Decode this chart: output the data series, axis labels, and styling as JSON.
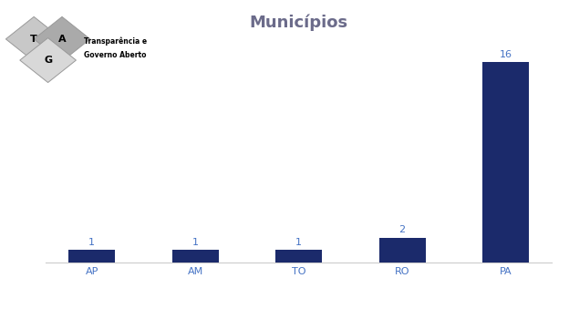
{
  "categories": [
    "AP",
    "AM",
    "TO",
    "RO",
    "PA"
  ],
  "values": [
    1,
    1,
    1,
    2,
    16
  ],
  "bar_color": "#1B2A6B",
  "title": "Municípios",
  "title_color": "#6B6B8A",
  "title_fontsize": 13,
  "label_color": "#4472C4",
  "label_fontsize": 8,
  "tick_color": "#4472C4",
  "tick_fontsize": 8,
  "background_color": "#FFFFFF",
  "ylim": [
    0,
    18
  ],
  "bar_width": 0.45,
  "logo": {
    "diamond_T_color": "#C8C8C8",
    "diamond_A_color": "#AAAAAA",
    "diamond_G_color": "#D8D8D8",
    "diamond_edge_color": "#999999",
    "T_text_color": "#000000",
    "A_text_color": "#000000",
    "G_text_color": "#000000",
    "text_line1": "Transparência e",
    "text_line2": "Governo Aberto",
    "text_color": "#000000",
    "text_fontsize": 5.5
  }
}
